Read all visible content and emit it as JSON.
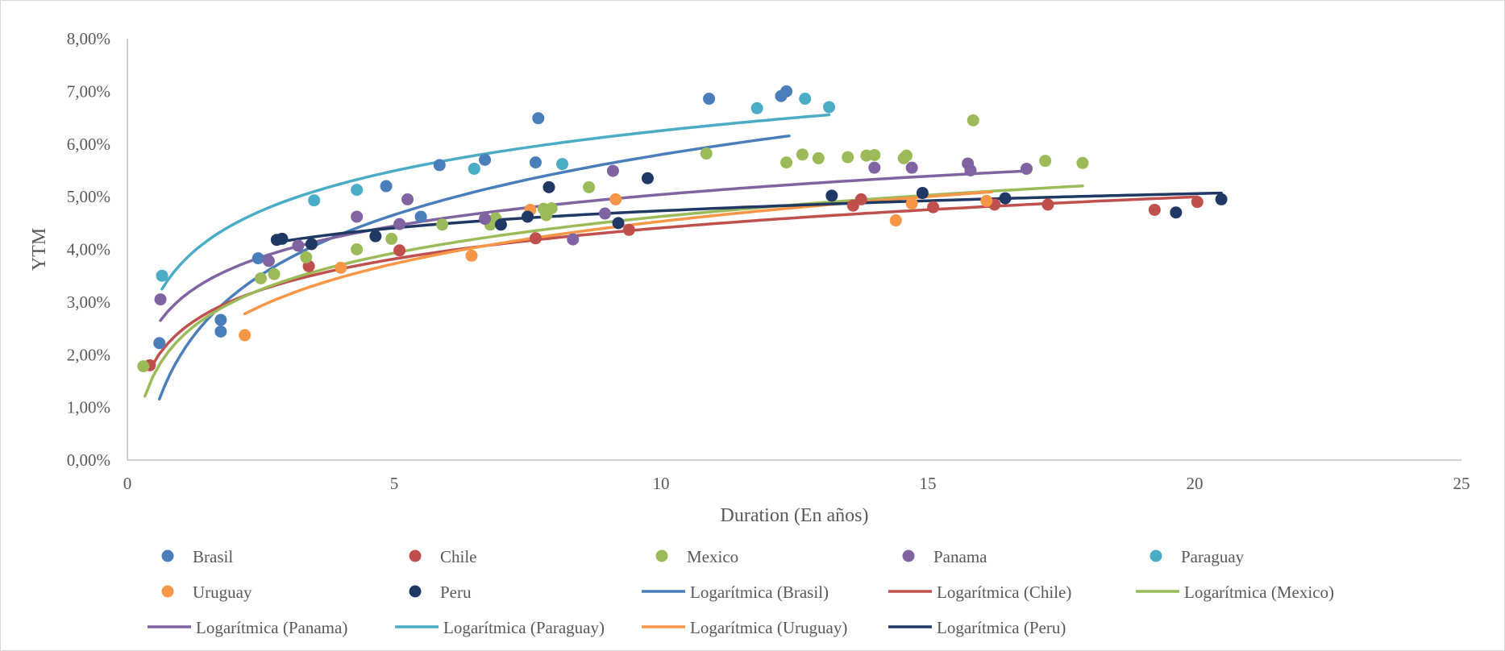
{
  "chart_data": {
    "type": "scatter",
    "xlabel": "Duration (En años)",
    "ylabel": "YTM",
    "xlim": [
      0,
      25
    ],
    "ylim": [
      0,
      0.08
    ],
    "x_ticks": [
      "0",
      "5",
      "10",
      "15",
      "20",
      "25"
    ],
    "y_ticks": [
      "0,00%",
      "1,00%",
      "2,00%",
      "3,00%",
      "4,00%",
      "5,00%",
      "6,00%",
      "7,00%",
      "8,00%"
    ],
    "grid": false,
    "legend_position": "bottom",
    "series": [
      {
        "name": "Brasil",
        "color": "#4a7ebb",
        "points": [
          [
            0.6,
            0.0222
          ],
          [
            1.75,
            0.0266
          ],
          [
            1.75,
            0.0244
          ],
          [
            2.45,
            0.0383
          ],
          [
            4.85,
            0.052
          ],
          [
            5.5,
            0.0462
          ],
          [
            5.85,
            0.056
          ],
          [
            6.7,
            0.057
          ],
          [
            7.65,
            0.0565
          ],
          [
            7.7,
            0.0649
          ],
          [
            10.9,
            0.0686
          ],
          [
            12.25,
            0.0691
          ],
          [
            12.35,
            0.07
          ]
        ]
      },
      {
        "name": "Chile",
        "color": "#c0504d",
        "points": [
          [
            0.42,
            0.018
          ],
          [
            3.4,
            0.0368
          ],
          [
            5.1,
            0.0398
          ],
          [
            7.65,
            0.0421
          ],
          [
            9.4,
            0.0437
          ],
          [
            13.6,
            0.0483
          ],
          [
            13.75,
            0.0495
          ],
          [
            15.1,
            0.048
          ],
          [
            16.25,
            0.0485
          ],
          [
            17.25,
            0.0485
          ],
          [
            19.25,
            0.0475
          ],
          [
            20.05,
            0.049
          ]
        ]
      },
      {
        "name": "Mexico",
        "color": "#9bbb59",
        "points": [
          [
            0.3,
            0.0178
          ],
          [
            2.5,
            0.0345
          ],
          [
            2.75,
            0.0353
          ],
          [
            3.35,
            0.0385
          ],
          [
            4.3,
            0.04
          ],
          [
            4.95,
            0.042
          ],
          [
            5.9,
            0.0447
          ],
          [
            6.8,
            0.0447
          ],
          [
            6.9,
            0.0459
          ],
          [
            7.8,
            0.0477
          ],
          [
            7.85,
            0.0465
          ],
          [
            7.95,
            0.0478
          ],
          [
            8.65,
            0.0518
          ],
          [
            10.85,
            0.0582
          ],
          [
            12.35,
            0.0565
          ],
          [
            12.65,
            0.058
          ],
          [
            12.95,
            0.0573
          ],
          [
            13.5,
            0.0575
          ],
          [
            13.85,
            0.0578
          ],
          [
            14.0,
            0.0579
          ],
          [
            14.55,
            0.0573
          ],
          [
            14.6,
            0.0578
          ],
          [
            15.85,
            0.0645
          ],
          [
            17.2,
            0.0568
          ],
          [
            17.9,
            0.0564
          ]
        ]
      },
      {
        "name": "Panama",
        "color": "#8064a2",
        "points": [
          [
            0.62,
            0.0305
          ],
          [
            2.65,
            0.0378
          ],
          [
            3.2,
            0.0407
          ],
          [
            4.3,
            0.0462
          ],
          [
            5.1,
            0.0448
          ],
          [
            5.25,
            0.0495
          ],
          [
            6.7,
            0.0458
          ],
          [
            8.35,
            0.0419
          ],
          [
            8.95,
            0.0468
          ],
          [
            9.1,
            0.0549
          ],
          [
            14.0,
            0.0555
          ],
          [
            14.7,
            0.0555
          ],
          [
            15.75,
            0.0563
          ],
          [
            15.8,
            0.055
          ],
          [
            16.85,
            0.0553
          ]
        ]
      },
      {
        "name": "Paraguay",
        "color": "#4bacc6",
        "points": [
          [
            0.65,
            0.035
          ],
          [
            3.5,
            0.0493
          ],
          [
            4.3,
            0.0513
          ],
          [
            6.5,
            0.0553
          ],
          [
            8.15,
            0.0562
          ],
          [
            11.8,
            0.0668
          ],
          [
            12.7,
            0.0686
          ],
          [
            13.15,
            0.067
          ]
        ]
      },
      {
        "name": "Uruguay",
        "color": "#f79646",
        "points": [
          [
            2.2,
            0.0237
          ],
          [
            4.0,
            0.0365
          ],
          [
            6.45,
            0.0388
          ],
          [
            7.55,
            0.0475
          ],
          [
            9.15,
            0.0495
          ],
          [
            14.4,
            0.0455
          ],
          [
            14.7,
            0.0487
          ],
          [
            16.1,
            0.0492
          ]
        ]
      },
      {
        "name": "Peru",
        "color": "#1f3864",
        "points": [
          [
            2.8,
            0.0418
          ],
          [
            2.9,
            0.042
          ],
          [
            3.45,
            0.041
          ],
          [
            4.65,
            0.0425
          ],
          [
            7.0,
            0.0447
          ],
          [
            7.5,
            0.0462
          ],
          [
            7.9,
            0.0518
          ],
          [
            9.2,
            0.045
          ],
          [
            9.75,
            0.0535
          ],
          [
            13.2,
            0.0502
          ],
          [
            14.9,
            0.0507
          ],
          [
            16.45,
            0.0497
          ],
          [
            19.65,
            0.047
          ],
          [
            20.5,
            0.0495
          ]
        ]
      }
    ],
    "trendlines": [
      {
        "name": "Logarítmica (Brasil)",
        "type": "logarithmic",
        "color": "#4a7ebb",
        "a": 0.0165,
        "b": 0.02,
        "x_range": [
          0.6,
          12.4
        ]
      },
      {
        "name": "Logarítmica (Chile)",
        "type": "logarithmic",
        "color": "#c0504d",
        "a": 0.0085,
        "b": 0.0245,
        "x_range": [
          0.42,
          20.05
        ]
      },
      {
        "name": "Logarítmica (Mexico)",
        "type": "logarithmic",
        "color": "#9bbb59",
        "a": 0.01,
        "b": 0.0232,
        "x_range": [
          0.33,
          17.9
        ]
      },
      {
        "name": "Logarítmica (Panama)",
        "type": "logarithmic",
        "color": "#8064a2",
        "a": 0.0086,
        "b": 0.0306,
        "x_range": [
          0.62,
          16.85
        ]
      },
      {
        "name": "Logarítmica (Paraguay)",
        "type": "logarithmic",
        "color": "#4bacc6",
        "a": 0.011,
        "b": 0.0372,
        "x_range": [
          0.65,
          13.15
        ]
      },
      {
        "name": "Logarítmica (Uruguay)",
        "type": "logarithmic",
        "color": "#f79646",
        "a": 0.0116,
        "b": 0.0186,
        "x_range": [
          2.2,
          16.2
        ]
      },
      {
        "name": "Logarítmica (Peru)",
        "type": "logarithmic",
        "color": "#1f3864",
        "a": 0.0047,
        "b": 0.0365,
        "x_range": [
          2.8,
          20.5
        ]
      }
    ],
    "legend": [
      "Brasil",
      "Chile",
      "Mexico",
      "Panama",
      "Paraguay",
      "Uruguay",
      "Peru",
      "Logarítmica (Brasil)",
      "Logarítmica (Chile)",
      "Logarítmica (Mexico)",
      "Logarítmica (Panama)",
      "Logarítmica (Paraguay)",
      "Logarítmica (Uruguay)",
      "Logarítmica (Peru)"
    ]
  }
}
